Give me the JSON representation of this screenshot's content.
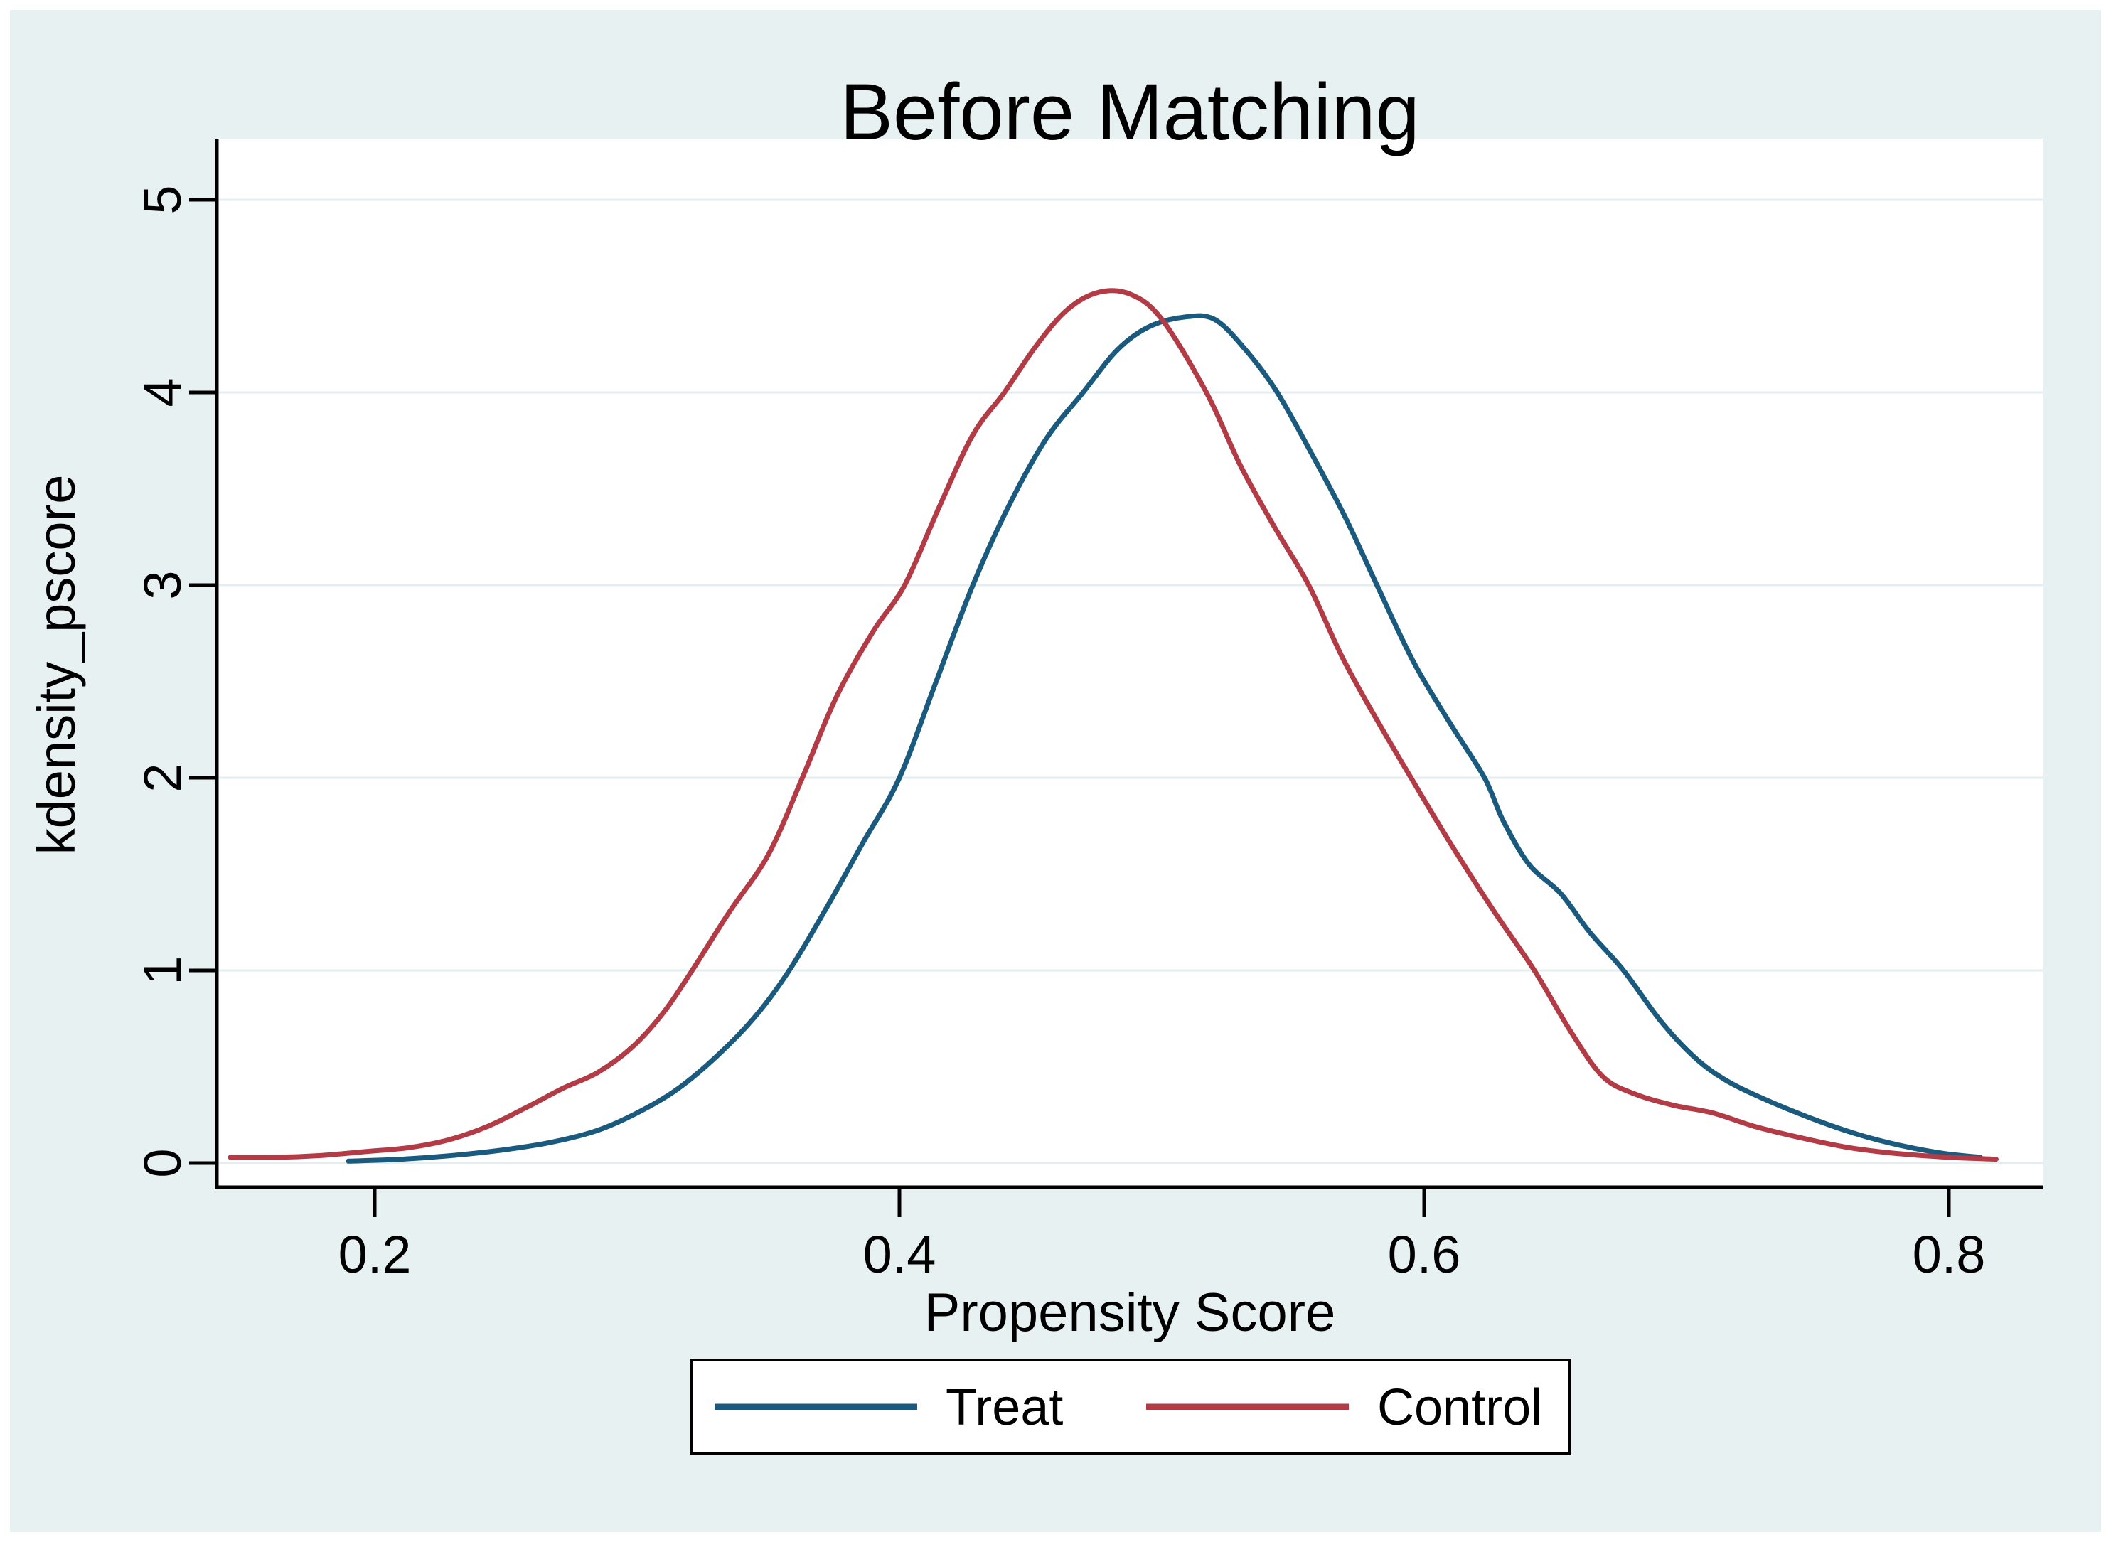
{
  "figure": {
    "title": "Before Matching",
    "title_color": "#16325c",
    "background_color": "#e8f1f2",
    "panel_color": "#ffffff",
    "grid_color": "#e4eef0",
    "axis_color": "#000000",
    "legend_border_color": "#000000",
    "legend_background": "#ffffff"
  },
  "legend": {
    "items": [
      {
        "label": "Treat",
        "color": "#1a5a7e"
      },
      {
        "label": "Control",
        "color": "#b23b46"
      }
    ]
  },
  "chart_data": {
    "type": "line",
    "title": "Before Matching",
    "xlabel": "Propensity Score",
    "ylabel": "kdensity_pscore",
    "xlim": [
      0.14,
      0.836
    ],
    "ylim": [
      0,
      5
    ],
    "x_ticks": [
      0.2,
      0.4,
      0.6,
      0.8
    ],
    "x_tick_labels": [
      "0.2",
      "0.4",
      "0.6",
      "0.8"
    ],
    "y_ticks": [
      0,
      1,
      2,
      3,
      4,
      5
    ],
    "y_tick_labels": [
      "0",
      "1",
      "2",
      "3",
      "4",
      "5"
    ],
    "grid": "horizontal",
    "legend_position": "bottom-center",
    "series": [
      {
        "name": "Treat",
        "color": "#1a5a7e",
        "points": [
          [
            0.19,
            0.01
          ],
          [
            0.21,
            0.02
          ],
          [
            0.23,
            0.04
          ],
          [
            0.25,
            0.07
          ],
          [
            0.268,
            0.11
          ],
          [
            0.285,
            0.17
          ],
          [
            0.3,
            0.26
          ],
          [
            0.315,
            0.38
          ],
          [
            0.33,
            0.55
          ],
          [
            0.345,
            0.76
          ],
          [
            0.358,
            1.0
          ],
          [
            0.372,
            1.32
          ],
          [
            0.386,
            1.66
          ],
          [
            0.4,
            2.0
          ],
          [
            0.414,
            2.5
          ],
          [
            0.428,
            3.0
          ],
          [
            0.442,
            3.42
          ],
          [
            0.456,
            3.76
          ],
          [
            0.47,
            4.0
          ],
          [
            0.483,
            4.22
          ],
          [
            0.495,
            4.34
          ],
          [
            0.508,
            4.39
          ],
          [
            0.52,
            4.38
          ],
          [
            0.532,
            4.22
          ],
          [
            0.544,
            4.0
          ],
          [
            0.558,
            3.66
          ],
          [
            0.57,
            3.35
          ],
          [
            0.582,
            3.0
          ],
          [
            0.596,
            2.6
          ],
          [
            0.61,
            2.28
          ],
          [
            0.623,
            2.0
          ],
          [
            0.63,
            1.78
          ],
          [
            0.64,
            1.55
          ],
          [
            0.652,
            1.4
          ],
          [
            0.663,
            1.2
          ],
          [
            0.676,
            1.0
          ],
          [
            0.69,
            0.74
          ],
          [
            0.703,
            0.55
          ],
          [
            0.715,
            0.43
          ],
          [
            0.73,
            0.33
          ],
          [
            0.748,
            0.23
          ],
          [
            0.765,
            0.15
          ],
          [
            0.782,
            0.09
          ],
          [
            0.798,
            0.05
          ],
          [
            0.812,
            0.03
          ]
        ]
      },
      {
        "name": "Control",
        "color": "#b23b46",
        "points": [
          [
            0.145,
            0.03
          ],
          [
            0.163,
            0.03
          ],
          [
            0.18,
            0.04
          ],
          [
            0.197,
            0.06
          ],
          [
            0.213,
            0.08
          ],
          [
            0.228,
            0.12
          ],
          [
            0.243,
            0.19
          ],
          [
            0.258,
            0.29
          ],
          [
            0.272,
            0.39
          ],
          [
            0.285,
            0.47
          ],
          [
            0.298,
            0.6
          ],
          [
            0.31,
            0.78
          ],
          [
            0.321,
            1.0
          ],
          [
            0.335,
            1.3
          ],
          [
            0.35,
            1.6
          ],
          [
            0.363,
            2.0
          ],
          [
            0.376,
            2.42
          ],
          [
            0.39,
            2.76
          ],
          [
            0.402,
            3.0
          ],
          [
            0.415,
            3.4
          ],
          [
            0.428,
            3.78
          ],
          [
            0.44,
            4.0
          ],
          [
            0.452,
            4.24
          ],
          [
            0.464,
            4.43
          ],
          [
            0.476,
            4.52
          ],
          [
            0.488,
            4.51
          ],
          [
            0.5,
            4.38
          ],
          [
            0.517,
            4.0
          ],
          [
            0.53,
            3.62
          ],
          [
            0.543,
            3.3
          ],
          [
            0.556,
            3.0
          ],
          [
            0.569,
            2.62
          ],
          [
            0.582,
            2.3
          ],
          [
            0.595,
            2.0
          ],
          [
            0.61,
            1.66
          ],
          [
            0.626,
            1.32
          ],
          [
            0.642,
            1.0
          ],
          [
            0.656,
            0.68
          ],
          [
            0.668,
            0.45
          ],
          [
            0.68,
            0.36
          ],
          [
            0.695,
            0.3
          ],
          [
            0.71,
            0.26
          ],
          [
            0.726,
            0.19
          ],
          [
            0.744,
            0.13
          ],
          [
            0.762,
            0.08
          ],
          [
            0.78,
            0.05
          ],
          [
            0.8,
            0.03
          ],
          [
            0.818,
            0.02
          ]
        ]
      }
    ]
  }
}
